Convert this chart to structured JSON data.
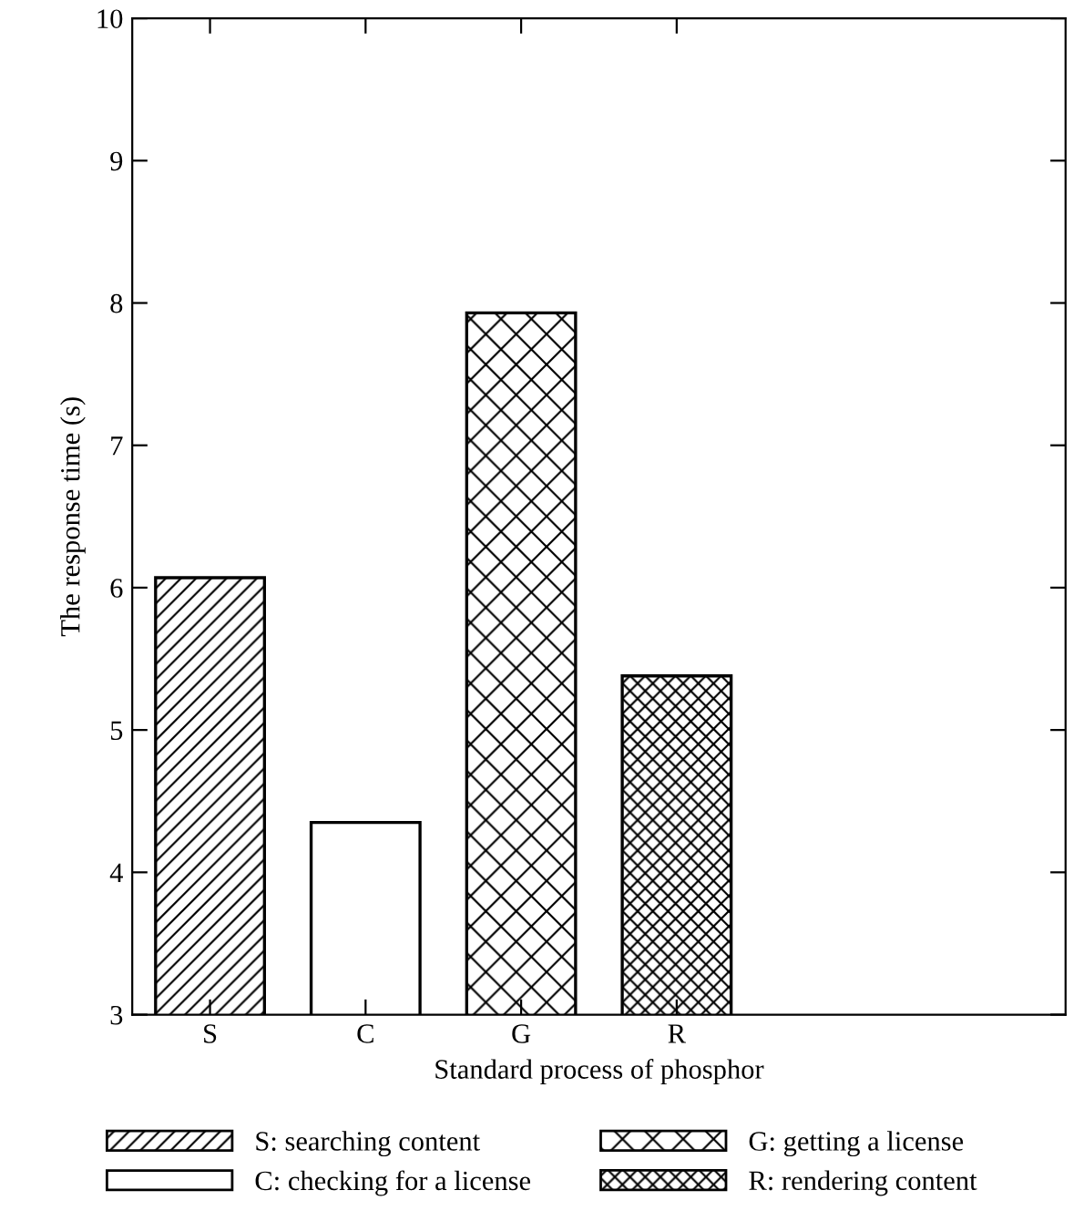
{
  "chart_data": {
    "type": "bar",
    "xlabel": "Standard process of phosphor",
    "ylabel": "The response time (s)",
    "categories": [
      "S",
      "C",
      "G",
      "R",
      null,
      null
    ],
    "series": [
      {
        "name": "S: searching content",
        "color": "#000000",
        "values": [
          6.07,
          null,
          null,
          null,
          null,
          null
        ]
      },
      {
        "name": "C: checking for a license",
        "color": "#ffffff",
        "values": [
          null,
          4.35,
          null,
          null,
          null,
          null
        ]
      },
      {
        "name": "G: getting a license",
        "color": "#000000",
        "values": [
          null,
          null,
          7.93,
          null,
          null,
          null
        ]
      },
      {
        "name": "R: rendering content",
        "color": "#000000",
        "values": [
          null,
          null,
          null,
          5.38,
          null,
          null
        ]
      }
    ],
    "ylim": [
      3,
      10
    ],
    "yticks": [
      3,
      4,
      5,
      6,
      7,
      8,
      9,
      10
    ],
    "grid": false,
    "legend": "bottom"
  }
}
